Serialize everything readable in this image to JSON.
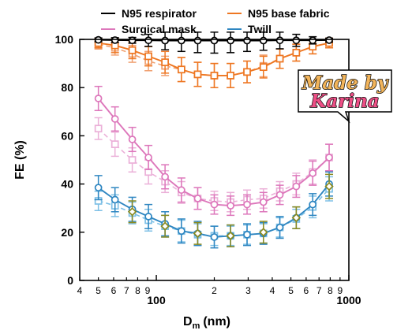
{
  "chart_data": {
    "type": "line",
    "title": "",
    "xlabel": "D",
    "xlabel_sub": "m",
    "xlabel_unit": "(nm)",
    "ylabel": "FE (%)",
    "x_scale": "log",
    "xlim": [
      40,
      1000
    ],
    "ylim": [
      0,
      100
    ],
    "yticks": [
      0,
      20,
      40,
      60,
      80,
      100
    ],
    "xticks_major": [
      {
        "v": 100,
        "label": "100"
      },
      {
        "v": 1000,
        "label": "1000"
      }
    ],
    "xticks_minor": [
      {
        "v": 40,
        "label": "4"
      },
      {
        "v": 50,
        "label": "5"
      },
      {
        "v": 60,
        "label": "6"
      },
      {
        "v": 70,
        "label": "7"
      },
      {
        "v": 80,
        "label": "8"
      },
      {
        "v": 90,
        "label": "9"
      },
      {
        "v": 200,
        "label": "2"
      },
      {
        "v": 300,
        "label": "3"
      },
      {
        "v": 400,
        "label": "4"
      },
      {
        "v": 500,
        "label": "5"
      },
      {
        "v": 600,
        "label": "6"
      },
      {
        "v": 700,
        "label": "7"
      },
      {
        "v": 800,
        "label": "8"
      },
      {
        "v": 900,
        "label": "9"
      }
    ],
    "grid": false,
    "legend_position": "top",
    "x": [
      50,
      61,
      75,
      91,
      111,
      135,
      164,
      200,
      243,
      296,
      360,
      438,
      533,
      649,
      790
    ],
    "series": [
      {
        "name": "N95 respirator",
        "color": "#000000",
        "marker": "circle",
        "values": [
          99.8,
          99.7,
          99.6,
          99.6,
          99.5,
          99.5,
          99.5,
          99.5,
          99.5,
          99.5,
          99.5,
          99.6,
          99.6,
          99.6,
          99.7
        ],
        "errors": [
          0.8,
          1.0,
          1.2,
          2.5,
          3.8,
          4.5,
          5.0,
          5.2,
          5.0,
          4.5,
          4.0,
          3.5,
          2.5,
          1.5,
          0.8
        ]
      },
      {
        "name": "N95 base fabric",
        "color": "#ee7722",
        "marker": "square",
        "values": [
          98.5,
          97.5,
          95.5,
          93,
          90.5,
          87.5,
          85.5,
          85,
          85,
          86.5,
          88.5,
          92,
          94.5,
          97,
          98.5
        ],
        "errors": [
          2,
          3,
          3.5,
          4,
          4.5,
          5,
          5,
          5,
          5,
          4.5,
          4.5,
          4,
          3.5,
          3,
          2
        ]
      },
      {
        "name": "",
        "color": "#f0a070",
        "marker": "square-open",
        "values": [
          98,
          96.5,
          94,
          91,
          89,
          87.5,
          85.5,
          85,
          85,
          86.5,
          89,
          92,
          94.5,
          97,
          98.5
        ],
        "errors": [
          2,
          3,
          3.5,
          4,
          4,
          5,
          5,
          5,
          5,
          4.5,
          4.5,
          4,
          3.5,
          3,
          2
        ]
      },
      {
        "name": "Surgical mask",
        "color": "#dd77bb",
        "marker": "circle",
        "values": [
          75.5,
          67,
          58.5,
          51,
          43,
          37.5,
          34,
          31.5,
          31,
          31.5,
          32.5,
          35.5,
          39,
          44.5,
          51
        ],
        "errors": [
          5,
          5,
          5,
          5,
          5,
          5,
          4.5,
          4,
          4,
          4,
          4,
          4,
          4.5,
          5,
          5.5
        ]
      },
      {
        "name": "",
        "color": "#ebb0d8",
        "marker": "square-open",
        "values": [
          63,
          56.5,
          50,
          45,
          41,
          36.5,
          34,
          33,
          32.5,
          33.5,
          34,
          37,
          40,
          45,
          51
        ],
        "errors": [
          4.5,
          5,
          5,
          5,
          4.5,
          4.5,
          4.5,
          4,
          4,
          4,
          4,
          4,
          4.5,
          5,
          5.5
        ]
      },
      {
        "name": "Twill",
        "color": "#2e86c1",
        "marker": "circle",
        "values": [
          38.5,
          33.5,
          29.5,
          26.5,
          23.5,
          20.5,
          19.5,
          18,
          18.5,
          19,
          19.5,
          22,
          26,
          31.5,
          40
        ],
        "errors": [
          5,
          5,
          5,
          5,
          5,
          5,
          5,
          4.5,
          4.5,
          4.5,
          4.5,
          4.5,
          4.5,
          4.5,
          5
        ]
      },
      {
        "name": "",
        "color": "#7ec0e6",
        "marker": "square-open",
        "values": [
          33,
          31,
          28,
          25,
          22.5,
          20.5,
          19,
          18.5,
          18.5,
          19,
          19.5,
          22,
          25.5,
          30.5,
          38
        ],
        "errors": [
          4,
          4.5,
          4.5,
          4.5,
          4.5,
          4.5,
          4.5,
          4,
          4,
          4,
          4,
          4,
          4,
          4.5,
          5
        ]
      },
      {
        "name": "",
        "color": "#8a8a20",
        "marker": "diamond",
        "values": [
          null,
          null,
          28.5,
          null,
          22.5,
          null,
          19.5,
          null,
          18.5,
          null,
          20,
          null,
          26,
          null,
          39
        ],
        "errors": [
          0,
          0,
          4.5,
          0,
          4.5,
          0,
          4.5,
          0,
          4.5,
          0,
          4.5,
          0,
          4.5,
          0,
          5
        ]
      }
    ],
    "legend": [
      {
        "label": "N95 respirator",
        "color": "#000000",
        "marker": "circle",
        "col": 0,
        "row": 0
      },
      {
        "label": "N95 base fabric",
        "color": "#ee7722",
        "marker": "square",
        "col": 1,
        "row": 0
      },
      {
        "label": "Surgical mask",
        "color": "#dd77bb",
        "marker": "circle",
        "col": 0,
        "row": 1
      },
      {
        "label": "Twill",
        "color": "#2e86c1",
        "marker": "circle",
        "col": 1,
        "row": 1
      }
    ]
  },
  "badge": {
    "line1": "Made by",
    "line2": "Karina",
    "line1_color": "#f2b45a",
    "line2_color": "#ee4f86",
    "background": "#ffffff",
    "outline": "#000000"
  }
}
